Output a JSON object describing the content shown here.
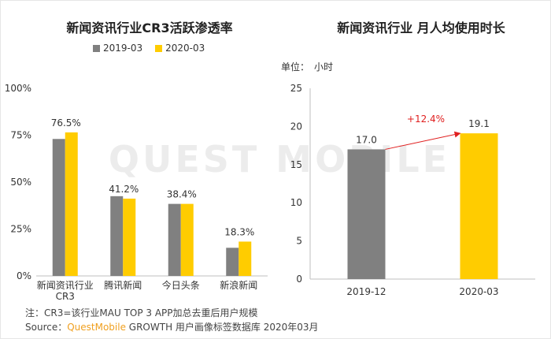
{
  "colors": {
    "gray": "#808080",
    "yellow": "#ffcc00",
    "arrow": "#e02020",
    "watermark": "#ececec"
  },
  "watermark_text": "QUEST MOBILE",
  "legend": [
    {
      "label": "2019-03",
      "color": "#808080"
    },
    {
      "label": "2020-03",
      "color": "#ffcc00"
    }
  ],
  "unit": {
    "label": "单位：",
    "value": "小时"
  },
  "footnote": {
    "note": "注：CR3=该行业MAU TOP 3 APP加总去重后用户规模",
    "source_prefix": "Source：",
    "source_brand": "QuestMobile",
    "source_rest": " GROWTH 用户画像标签数据库 2020年03月"
  },
  "chart_data": [
    {
      "type": "bar",
      "title": "新闻资讯行业CR3活跃渗透率",
      "categories": [
        [
          "新闻资讯行业",
          "CR3"
        ],
        [
          "腾讯新闻"
        ],
        [
          "今日头条"
        ],
        [
          "新浪新闻"
        ]
      ],
      "series": [
        {
          "name": "2019-03",
          "color": "#808080",
          "values": [
            73.0,
            42.5,
            38.4,
            15.0
          ]
        },
        {
          "name": "2020-03",
          "color": "#ffcc00",
          "values": [
            76.5,
            41.2,
            38.4,
            18.3
          ]
        }
      ],
      "labels": [
        "76.5%",
        "41.2%",
        "38.4%",
        "18.3%"
      ],
      "yticks": [
        "0%",
        "25%",
        "50%",
        "75%",
        "100%"
      ],
      "ylim": [
        0,
        100
      ],
      "legend_position": "top"
    },
    {
      "type": "bar",
      "title": "新闻资讯行业 月人均使用时长",
      "categories": [
        "2019-12",
        "2020-03"
      ],
      "values": [
        17.0,
        19.1
      ],
      "colors": [
        "#808080",
        "#ffcc00"
      ],
      "labels": [
        "17.0",
        "19.1"
      ],
      "growth_label": "+12.4%",
      "yticks": [
        "0",
        "5",
        "10",
        "15",
        "20",
        "25"
      ],
      "ylim": [
        0,
        25
      ]
    }
  ]
}
